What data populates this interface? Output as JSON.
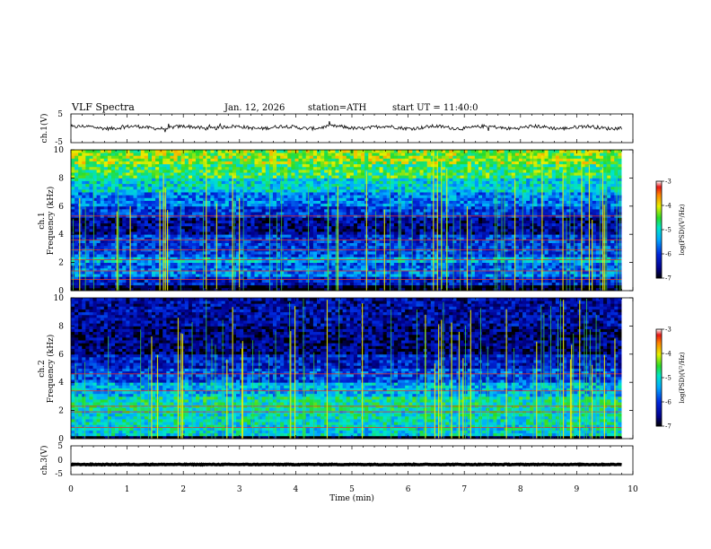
{
  "header": {
    "title": "VLF  Spectra",
    "date": "Jan. 12, 2026",
    "station": "station=ATH",
    "start": "start  UT  =   11:40:0"
  },
  "chart_data": [
    {
      "type": "line",
      "name": "ch1-waveform",
      "ylabel": "ch.1(V)",
      "ylim": [
        -5,
        5
      ],
      "y_ticks": [
        "5",
        "-5"
      ],
      "xlim": [
        0,
        10
      ],
      "baseline": 0.3
    },
    {
      "type": "heatmap",
      "name": "ch1-spectrogram",
      "ylabel": "Frequency  (kHz)",
      "channel_label": "ch.1",
      "ylim": [
        0,
        10
      ],
      "y_ticks": [
        "0",
        "2",
        "4",
        "6",
        "8",
        "10"
      ],
      "xlim": [
        0,
        10
      ],
      "data_end_min": 9.8,
      "colorbar": {
        "label": "log(PSD)(V²/Hz)",
        "ticks": [
          "-3",
          "-4",
          "-5",
          "-6",
          "-7"
        ],
        "range": [
          -7,
          -3
        ]
      },
      "bands": [
        {
          "from": 0.0,
          "to": 0.3,
          "level": -7.0
        },
        {
          "from": 0.3,
          "to": 1.0,
          "level": -6.2
        },
        {
          "from": 1.0,
          "to": 1.5,
          "level": -5.6
        },
        {
          "from": 1.5,
          "to": 2.0,
          "level": -5.8
        },
        {
          "from": 2.0,
          "to": 2.4,
          "level": -5.3
        },
        {
          "from": 2.4,
          "to": 3.0,
          "level": -5.9
        },
        {
          "from": 3.0,
          "to": 4.0,
          "level": -6.0
        },
        {
          "from": 4.0,
          "to": 5.2,
          "level": -6.5
        },
        {
          "from": 5.2,
          "to": 6.0,
          "level": -6.0
        },
        {
          "from": 6.0,
          "to": 7.0,
          "level": -5.6
        },
        {
          "from": 7.0,
          "to": 8.0,
          "level": -5.1
        },
        {
          "from": 8.0,
          "to": 9.0,
          "level": -4.6
        },
        {
          "from": 9.0,
          "to": 10.0,
          "level": -4.3
        }
      ],
      "lines_khz": [
        0.8,
        1.4,
        2.2,
        2.9,
        3.6,
        5.3
      ],
      "spike_count": 70
    },
    {
      "type": "heatmap",
      "name": "ch2-spectrogram",
      "ylabel": "Frequency  (kHz)",
      "channel_label": "ch.2",
      "ylim": [
        0,
        10
      ],
      "y_ticks": [
        "0",
        "2",
        "4",
        "6",
        "8",
        "10"
      ],
      "xlim": [
        0,
        10
      ],
      "data_end_min": 9.8,
      "colorbar": {
        "label": "log(PSD)(V²/Hz)",
        "ticks": [
          "-3",
          "-4",
          "-5",
          "-6",
          "-7"
        ],
        "range": [
          -7,
          -3
        ]
      },
      "bands": [
        {
          "from": 0.0,
          "to": 0.2,
          "level": -7.0
        },
        {
          "from": 0.2,
          "to": 1.0,
          "level": -5.1
        },
        {
          "from": 1.0,
          "to": 2.0,
          "level": -5.0
        },
        {
          "from": 2.0,
          "to": 3.0,
          "level": -4.9
        },
        {
          "from": 3.0,
          "to": 4.0,
          "level": -5.3
        },
        {
          "from": 4.0,
          "to": 5.0,
          "level": -5.9
        },
        {
          "from": 5.0,
          "to": 6.0,
          "level": -6.2
        },
        {
          "from": 6.0,
          "to": 8.0,
          "level": -6.6
        },
        {
          "from": 8.0,
          "to": 10.0,
          "level": -6.4
        }
      ],
      "lines_khz": [
        0.8,
        1.9,
        2.3,
        3.4,
        4.6
      ],
      "spike_count": 70
    },
    {
      "type": "line",
      "name": "ch3-waveform",
      "ylabel": "ch.3(V)",
      "ylim": [
        -5,
        5
      ],
      "y_ticks": [
        "5",
        "0",
        "-5"
      ],
      "xlim": [
        0,
        10
      ],
      "baseline": -1.5
    }
  ],
  "xaxis": {
    "label": "Time  (min)",
    "ticks": [
      "0",
      "1",
      "2",
      "3",
      "4",
      "5",
      "6",
      "7",
      "8",
      "9",
      "10"
    ]
  }
}
